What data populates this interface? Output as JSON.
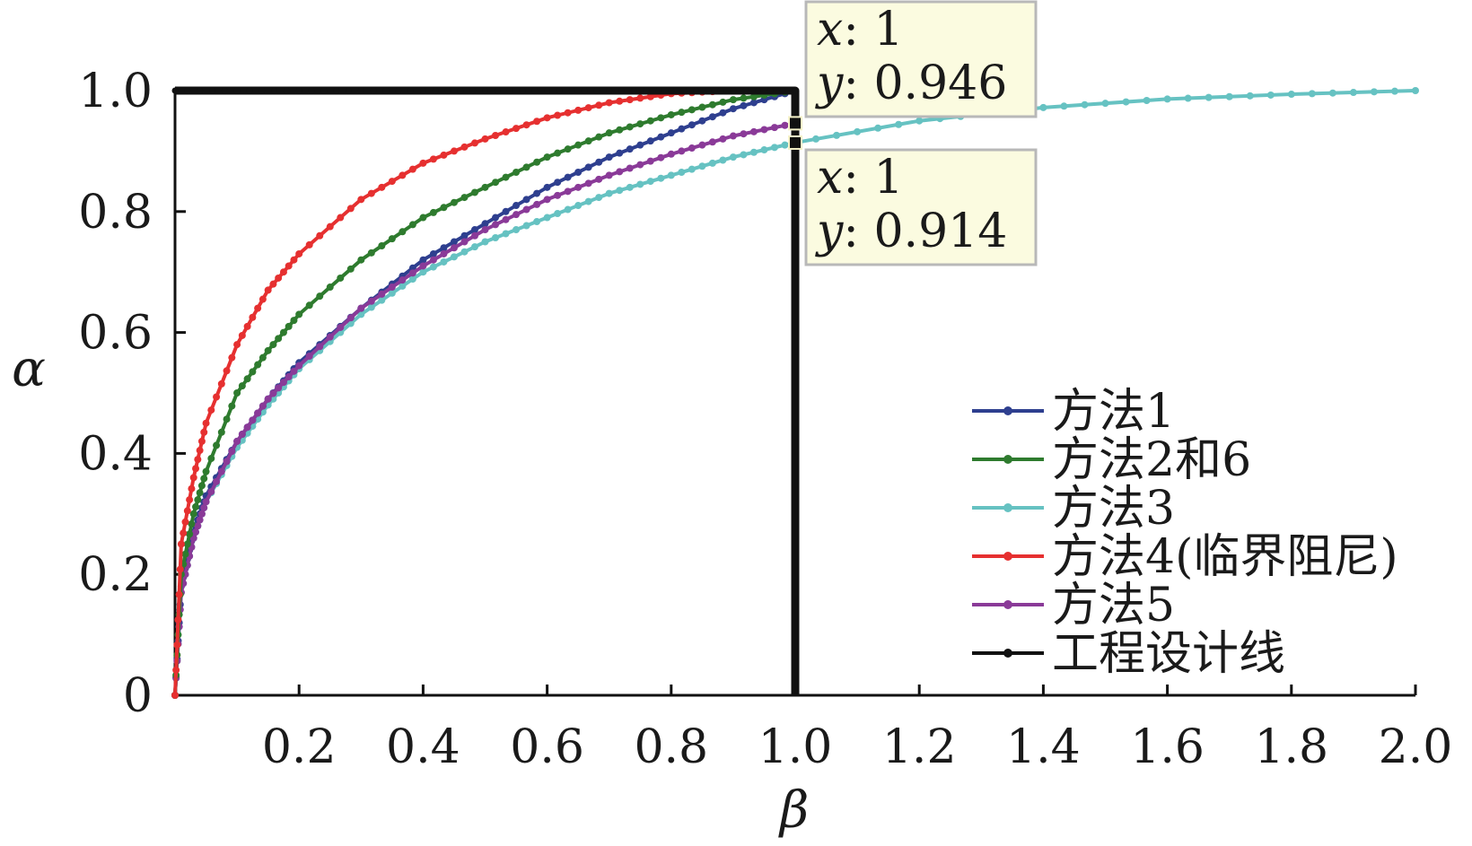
{
  "chart_data": {
    "type": "line",
    "title": "",
    "xlabel": "β",
    "ylabel": "α",
    "xlim": [
      0,
      2.0
    ],
    "ylim": [
      0,
      1.0
    ],
    "x_ticks": [
      "0.2",
      "0.4",
      "0.6",
      "0.8",
      "1.0",
      "1.2",
      "1.4",
      "1.6",
      "1.8",
      "2.0"
    ],
    "y_ticks": [
      "0",
      "0.2",
      "0.4",
      "0.6",
      "0.8",
      "1.0"
    ],
    "grid": false,
    "legend_position": "bottom-right",
    "series": [
      {
        "name": "方法1",
        "color": "#2e3f8f",
        "x": [
          0,
          0.01,
          0.03,
          0.05,
          0.1,
          0.15,
          0.2,
          0.3,
          0.4,
          0.5,
          0.6,
          0.7,
          0.8,
          0.9,
          1.0
        ],
        "y": [
          0,
          0.18,
          0.27,
          0.33,
          0.42,
          0.49,
          0.55,
          0.64,
          0.72,
          0.78,
          0.84,
          0.89,
          0.93,
          0.97,
          1.0
        ]
      },
      {
        "name": "方法2和6",
        "color": "#2e7b2e",
        "x": [
          0,
          0.01,
          0.03,
          0.05,
          0.1,
          0.15,
          0.2,
          0.3,
          0.4,
          0.5,
          0.6,
          0.7,
          0.8,
          0.9,
          1.0
        ],
        "y": [
          0,
          0.2,
          0.3,
          0.37,
          0.5,
          0.57,
          0.63,
          0.72,
          0.79,
          0.84,
          0.89,
          0.93,
          0.96,
          0.985,
          1.0
        ]
      },
      {
        "name": "方法3",
        "color": "#66c2c2",
        "x": [
          0,
          0.01,
          0.03,
          0.05,
          0.1,
          0.15,
          0.2,
          0.3,
          0.4,
          0.5,
          0.6,
          0.7,
          0.8,
          0.9,
          1.0,
          1.2,
          1.4,
          1.6,
          1.8,
          2.0
        ],
        "y": [
          0,
          0.17,
          0.26,
          0.32,
          0.41,
          0.48,
          0.54,
          0.63,
          0.7,
          0.75,
          0.79,
          0.83,
          0.86,
          0.89,
          0.914,
          0.95,
          0.972,
          0.986,
          0.994,
          1.0
        ]
      },
      {
        "name": "方法4(临界阻尼)",
        "color": "#e63030",
        "x": [
          0,
          0.01,
          0.03,
          0.05,
          0.1,
          0.15,
          0.2,
          0.3,
          0.4,
          0.5,
          0.6,
          0.7,
          0.8,
          0.9,
          1.0
        ],
        "y": [
          0,
          0.25,
          0.36,
          0.45,
          0.58,
          0.67,
          0.73,
          0.82,
          0.88,
          0.92,
          0.955,
          0.98,
          0.995,
          1.0,
          1.0
        ]
      },
      {
        "name": "方法5",
        "color": "#8a3a98",
        "x": [
          0,
          0.01,
          0.03,
          0.05,
          0.1,
          0.15,
          0.2,
          0.3,
          0.4,
          0.5,
          0.6,
          0.7,
          0.8,
          0.9,
          1.0
        ],
        "y": [
          0,
          0.17,
          0.26,
          0.32,
          0.42,
          0.49,
          0.545,
          0.64,
          0.71,
          0.77,
          0.82,
          0.86,
          0.895,
          0.925,
          0.946
        ]
      },
      {
        "name": "工程设计线",
        "color": "#111111",
        "x": [
          0,
          0.2,
          0.4,
          0.6,
          0.8,
          1.0,
          1.0
        ],
        "y": [
          1.0,
          1.0,
          1.0,
          1.0,
          1.0,
          1.0,
          0
        ]
      }
    ],
    "annotations": [
      {
        "x_label": "x",
        "x_value": "1",
        "y_label": "y",
        "y_value": "0.946",
        "point_x": 1.0,
        "point_y": 0.946
      },
      {
        "x_label": "x",
        "x_value": "1",
        "y_label": "y",
        "y_value": "0.914",
        "point_x": 1.0,
        "point_y": 0.914
      }
    ]
  }
}
